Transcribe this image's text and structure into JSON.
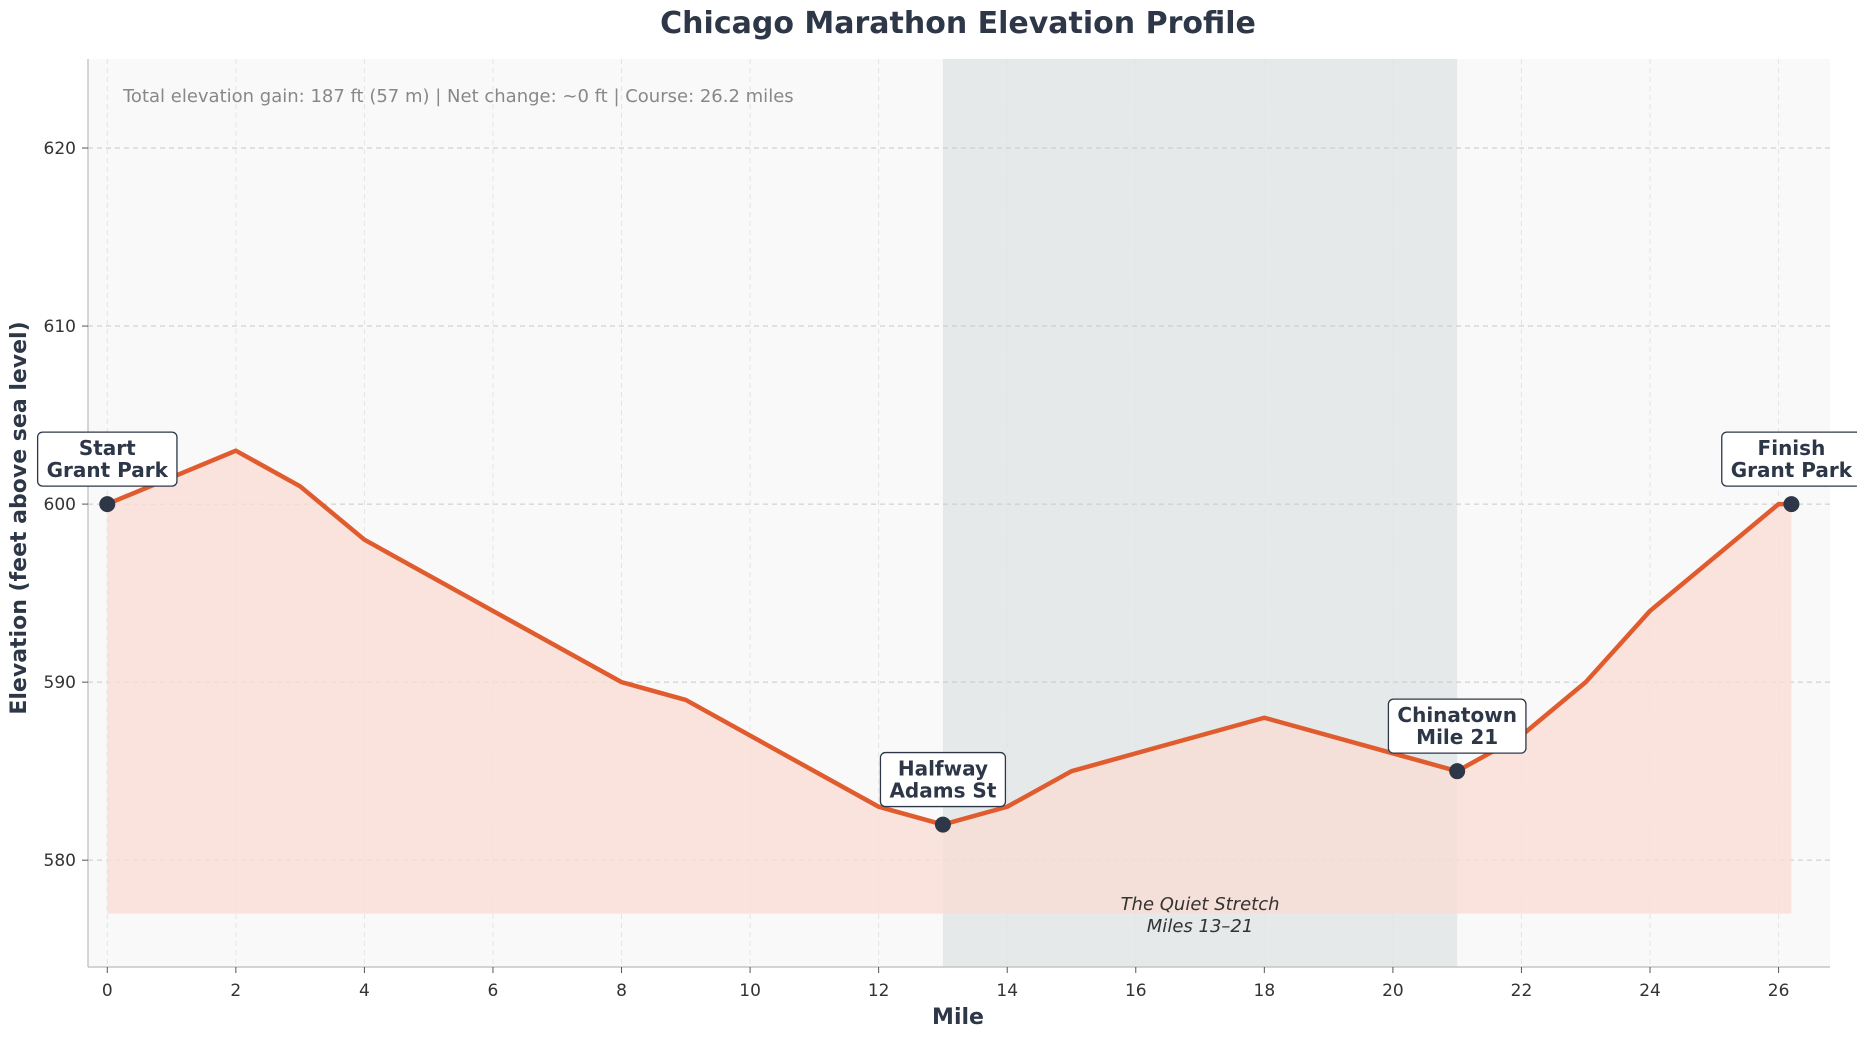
{
  "chart_data": {
    "type": "area",
    "title": "Chicago Marathon Elevation Profile",
    "xlabel": "Mile",
    "ylabel": "Elevation (feet above sea level)",
    "xlim": [
      -0.3,
      26.8
    ],
    "ylim": [
      574,
      625
    ],
    "x_ticks": [
      0,
      2,
      4,
      6,
      8,
      10,
      12,
      14,
      16,
      18,
      20,
      22,
      24,
      26
    ],
    "y_ticks": [
      580,
      590,
      600,
      610,
      620
    ],
    "fill_baseline": 577,
    "grid": true,
    "stats_text": "Total elevation gain: 187 ft (57 m)  |  Net change: ~0 ft  |  Course: 26.2 miles",
    "series": [
      {
        "x": [
          0,
          2,
          3,
          4,
          8,
          9,
          12,
          13,
          14,
          15,
          18,
          21,
          22,
          23,
          24,
          26,
          26.2
        ],
        "y": [
          600,
          603,
          601,
          598,
          590,
          589,
          583,
          582,
          583,
          585,
          588,
          585,
          587,
          590,
          594,
          600,
          600
        ]
      }
    ],
    "highlight_region": {
      "x_range": [
        13,
        21
      ],
      "label_line1": "The Quiet Stretch",
      "label_line2": "Miles 13–21"
    },
    "annotations": [
      {
        "x": 0,
        "y": 600,
        "line1": "Start",
        "line2": "Grant Park",
        "position": "above"
      },
      {
        "x": 13,
        "y": 582,
        "line1": "Halfway",
        "line2": "Adams St",
        "position": "above"
      },
      {
        "x": 21,
        "y": 585,
        "line1": "Chinatown",
        "line2": "Mile 21",
        "position": "above"
      },
      {
        "x": 26.2,
        "y": 600,
        "line1": "Finish",
        "line2": "Grant Park",
        "position": "above"
      }
    ],
    "colors": {
      "line": "#e05c2e",
      "fill": "#f9ddd4",
      "marker": "#2d3748",
      "region": "#e3e6e8",
      "plot_bg": "#f9f9f9"
    }
  }
}
